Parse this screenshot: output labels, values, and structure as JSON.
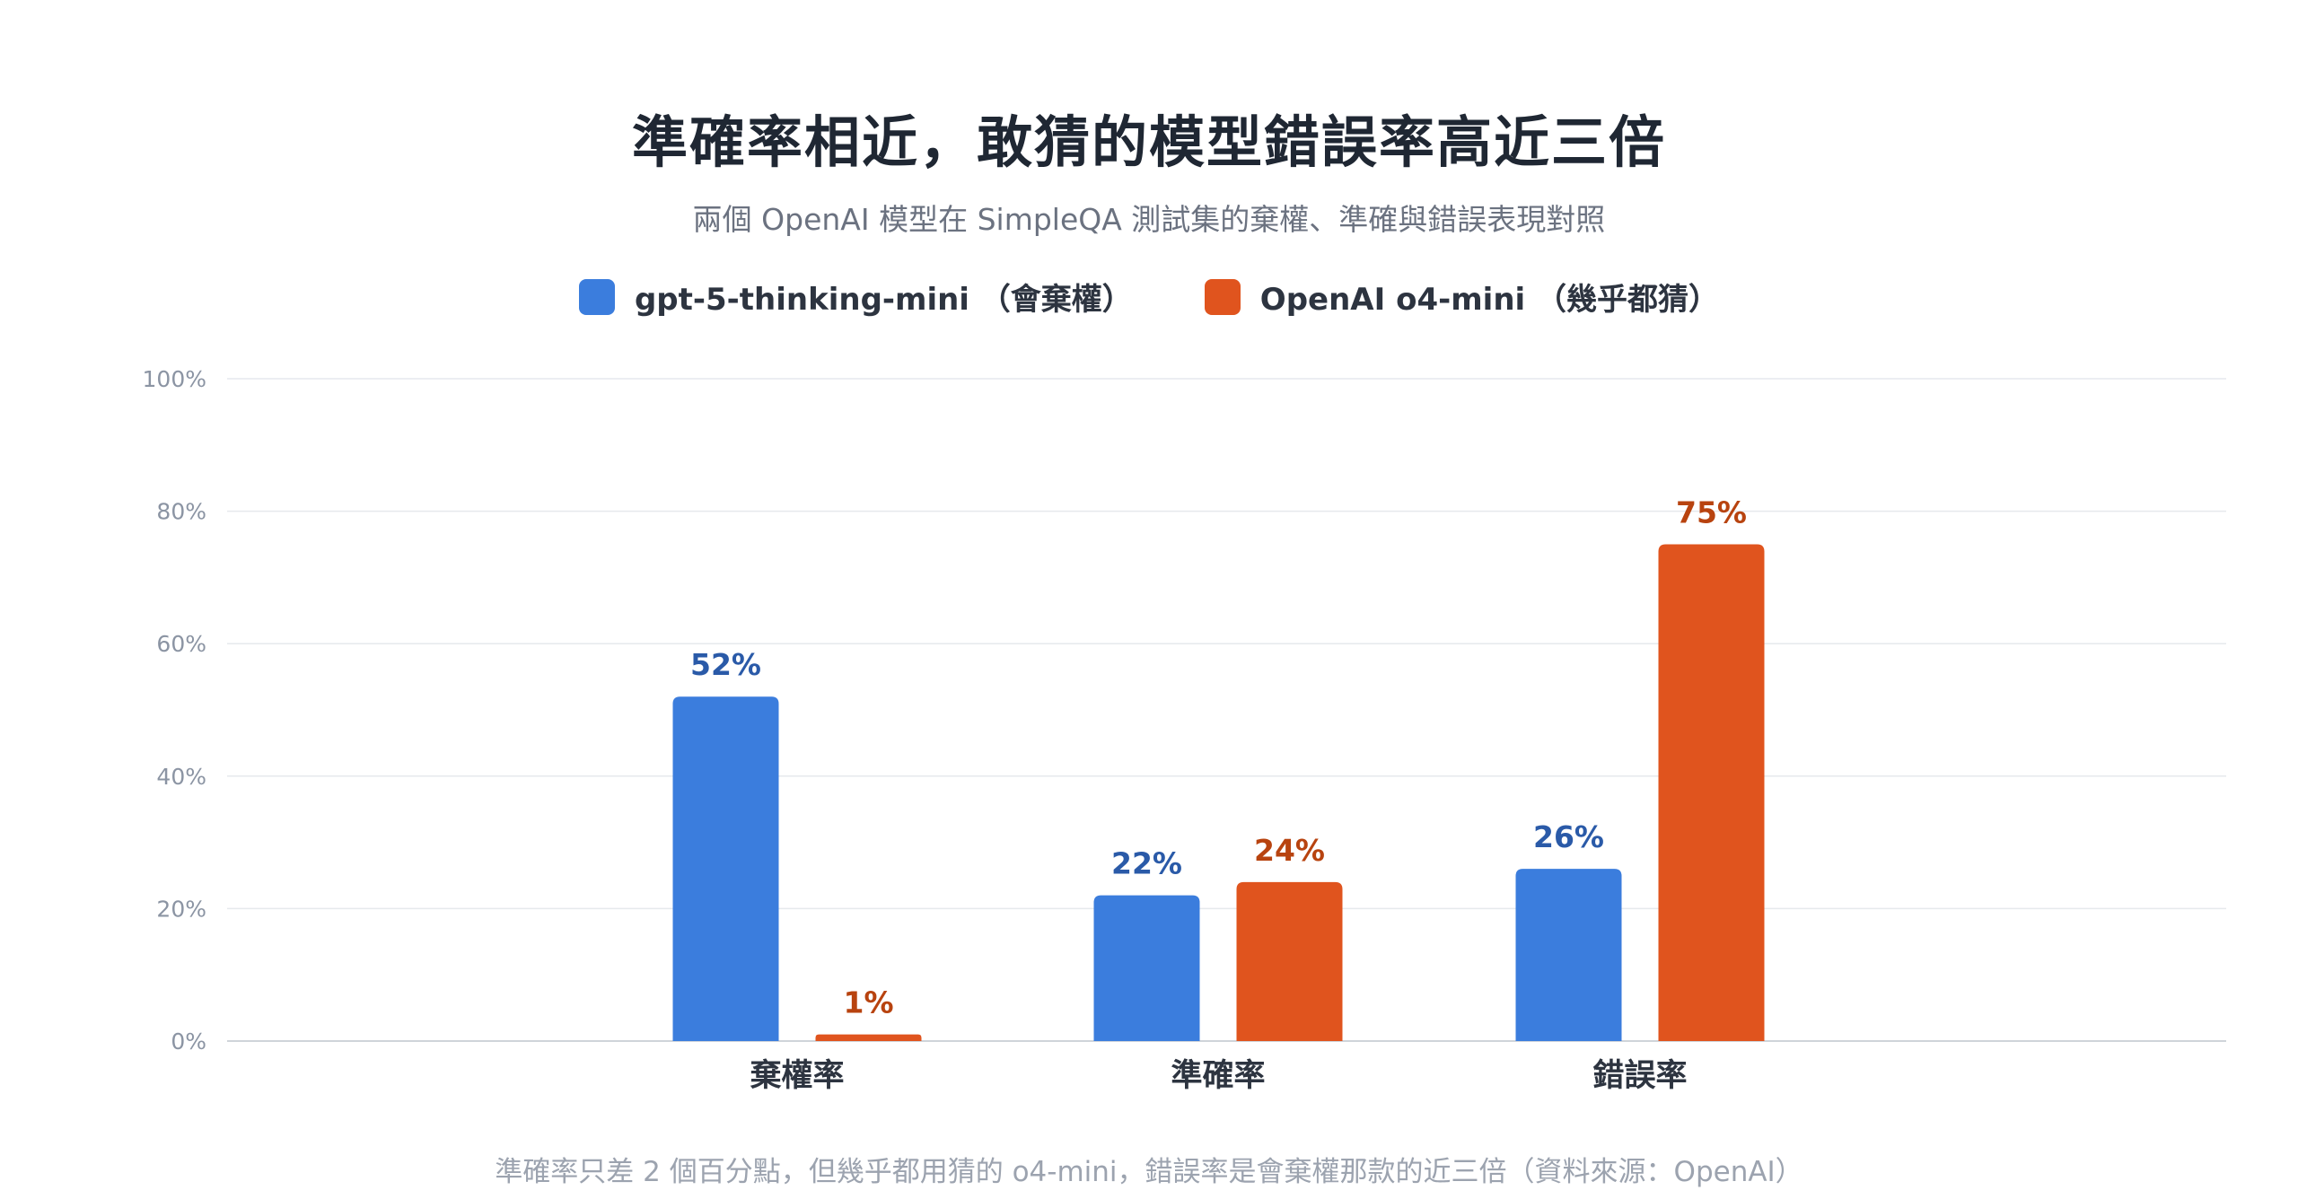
{
  "header": {
    "title": "準確率相近，敢猜的模型錯誤率高近三倍",
    "subtitle": "兩個 OpenAI 模型在 SimpleQA 測試集的棄權、準確與錯誤表現對照"
  },
  "legend": {
    "items": [
      {
        "label": "gpt-5-thinking-mini （會棄權）",
        "color": "#3b7ddd"
      },
      {
        "label": "OpenAI o4-mini （幾乎都猜）",
        "color": "#e0541e"
      }
    ]
  },
  "footnote": "準確率只差 2 個百分點，但幾乎都用猜的 o4-mini，錯誤率是會棄權那款的近三倍（資料來源：OpenAI）",
  "chart_data": {
    "type": "bar",
    "title": "準確率相近，敢猜的模型錯誤率高近三倍",
    "subtitle": "兩個 OpenAI 模型在 SimpleQA 測試集的棄權、準確與錯誤表現對照",
    "categories": [
      "棄權率",
      "準確率",
      "錯誤率"
    ],
    "series": [
      {
        "name": "gpt-5-thinking-mini （會棄權）",
        "color": "#3b7ddd",
        "label_color": "#2a5aa8",
        "values": [
          52,
          22,
          26
        ],
        "labels": [
          "52%",
          "22%",
          "26%"
        ]
      },
      {
        "name": "OpenAI o4-mini （幾乎都猜）",
        "color": "#e0541e",
        "label_color": "#b8430f",
        "values": [
          1,
          24,
          75
        ],
        "labels": [
          "1%",
          "24%",
          "75%"
        ]
      }
    ],
    "ylim": [
      0,
      100
    ],
    "yticks": [
      0,
      20,
      40,
      60,
      80,
      100
    ],
    "ytick_labels": [
      "0%",
      "20%",
      "40%",
      "60%",
      "80%",
      "100%"
    ],
    "grid": true,
    "legend_position": "top-center"
  }
}
